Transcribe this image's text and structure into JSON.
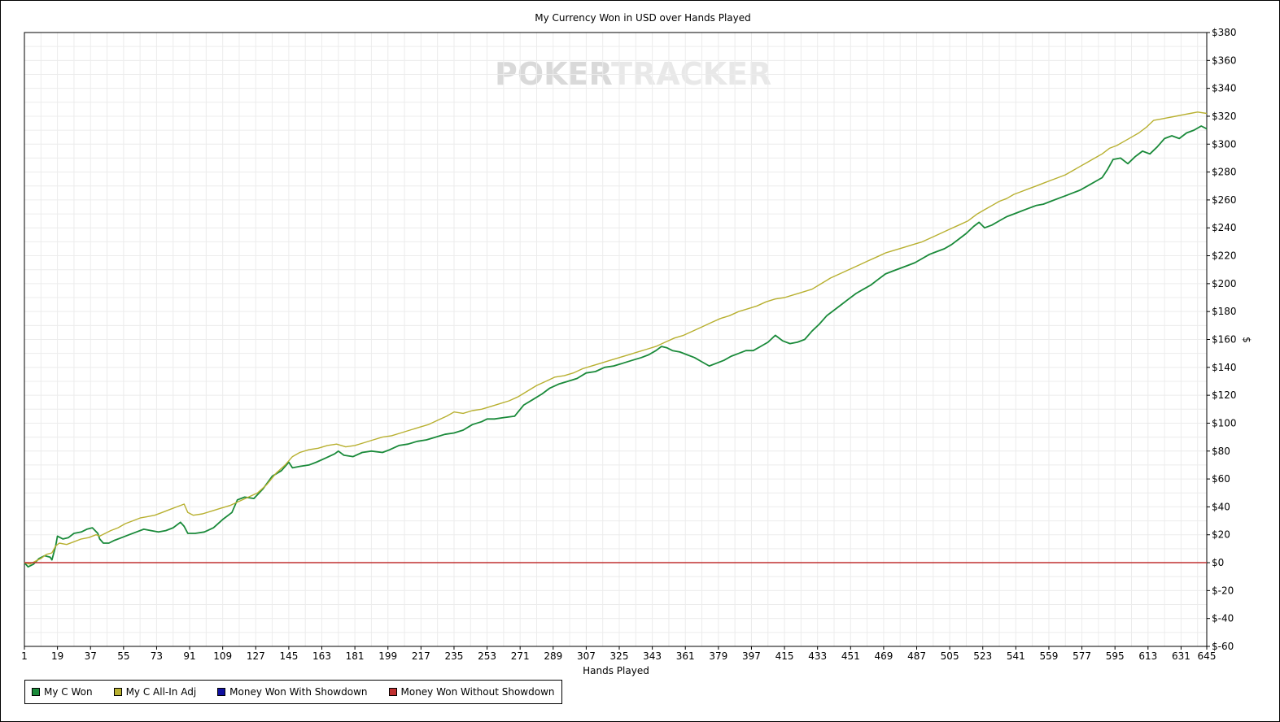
{
  "chart_data": {
    "type": "line",
    "title": "My Currency Won in USD over Hands Played",
    "xlabel": "Hands Played",
    "ylabel": "$",
    "watermark": "POKERTRACKER",
    "x_range": [
      1,
      645
    ],
    "y_range": [
      -60,
      380
    ],
    "x_ticks": [
      "1",
      "19",
      "37",
      "55",
      "73",
      "91",
      "109",
      "127",
      "145",
      "163",
      "181",
      "199",
      "217",
      "235",
      "253",
      "271",
      "289",
      "307",
      "325",
      "343",
      "361",
      "379",
      "397",
      "415",
      "433",
      "451",
      "469",
      "487",
      "505",
      "523",
      "541",
      "559",
      "577",
      "595",
      "613",
      "631",
      "645"
    ],
    "y_ticks": [
      "$380",
      "$360",
      "$340",
      "$320",
      "$300",
      "$280",
      "$260",
      "$240",
      "$220",
      "$200",
      "$180",
      "$160",
      "$140",
      "$120",
      "$100",
      "$80",
      "$60",
      "$40",
      "$20",
      "$0",
      "$-20",
      "$-40",
      "$-60"
    ],
    "grid": true,
    "legend_position": "bottom-left",
    "series": [
      {
        "name": "My C Won",
        "color": "#1a8a3a",
        "points": [
          [
            1,
            0
          ],
          [
            3,
            -3
          ],
          [
            6,
            -1
          ],
          [
            9,
            3
          ],
          [
            12,
            5
          ],
          [
            15,
            4
          ],
          [
            16,
            2
          ],
          [
            18,
            12
          ],
          [
            19,
            19
          ],
          [
            22,
            17
          ],
          [
            25,
            18
          ],
          [
            28,
            21
          ],
          [
            32,
            22
          ],
          [
            35,
            24
          ],
          [
            38,
            25
          ],
          [
            41,
            21
          ],
          [
            42,
            17
          ],
          [
            44,
            14
          ],
          [
            47,
            14
          ],
          [
            50,
            16
          ],
          [
            54,
            18
          ],
          [
            58,
            20
          ],
          [
            62,
            22
          ],
          [
            66,
            24
          ],
          [
            70,
            23
          ],
          [
            74,
            22
          ],
          [
            78,
            23
          ],
          [
            82,
            25
          ],
          [
            86,
            29
          ],
          [
            88,
            26
          ],
          [
            90,
            21
          ],
          [
            94,
            21
          ],
          [
            99,
            22
          ],
          [
            104,
            25
          ],
          [
            109,
            31
          ],
          [
            114,
            36
          ],
          [
            117,
            45
          ],
          [
            121,
            47
          ],
          [
            126,
            46
          ],
          [
            131,
            53
          ],
          [
            136,
            62
          ],
          [
            141,
            66
          ],
          [
            145,
            72
          ],
          [
            147,
            68
          ],
          [
            151,
            69
          ],
          [
            156,
            70
          ],
          [
            160,
            72
          ],
          [
            165,
            75
          ],
          [
            170,
            78
          ],
          [
            172,
            80
          ],
          [
            175,
            77
          ],
          [
            180,
            76
          ],
          [
            185,
            79
          ],
          [
            190,
            80
          ],
          [
            196,
            79
          ],
          [
            200,
            81
          ],
          [
            205,
            84
          ],
          [
            210,
            85
          ],
          [
            215,
            87
          ],
          [
            220,
            88
          ],
          [
            225,
            90
          ],
          [
            230,
            92
          ],
          [
            235,
            93
          ],
          [
            240,
            95
          ],
          [
            245,
            99
          ],
          [
            250,
            101
          ],
          [
            253,
            103
          ],
          [
            257,
            103
          ],
          [
            262,
            104
          ],
          [
            268,
            105
          ],
          [
            273,
            113
          ],
          [
            278,
            117
          ],
          [
            283,
            121
          ],
          [
            287,
            125
          ],
          [
            292,
            128
          ],
          [
            297,
            130
          ],
          [
            302,
            132
          ],
          [
            307,
            136
          ],
          [
            312,
            137
          ],
          [
            317,
            140
          ],
          [
            322,
            141
          ],
          [
            327,
            143
          ],
          [
            332,
            145
          ],
          [
            337,
            147
          ],
          [
            341,
            149
          ],
          [
            345,
            152
          ],
          [
            348,
            155
          ],
          [
            351,
            154
          ],
          [
            354,
            152
          ],
          [
            358,
            151
          ],
          [
            362,
            149
          ],
          [
            366,
            147
          ],
          [
            370,
            144
          ],
          [
            374,
            141
          ],
          [
            378,
            143
          ],
          [
            382,
            145
          ],
          [
            386,
            148
          ],
          [
            390,
            150
          ],
          [
            394,
            152
          ],
          [
            398,
            152
          ],
          [
            402,
            155
          ],
          [
            406,
            158
          ],
          [
            410,
            163
          ],
          [
            414,
            159
          ],
          [
            418,
            157
          ],
          [
            422,
            158
          ],
          [
            426,
            160
          ],
          [
            430,
            166
          ],
          [
            434,
            171
          ],
          [
            438,
            177
          ],
          [
            442,
            181
          ],
          [
            446,
            185
          ],
          [
            450,
            189
          ],
          [
            454,
            193
          ],
          [
            458,
            196
          ],
          [
            462,
            199
          ],
          [
            466,
            203
          ],
          [
            470,
            207
          ],
          [
            474,
            209
          ],
          [
            478,
            211
          ],
          [
            482,
            213
          ],
          [
            486,
            215
          ],
          [
            490,
            218
          ],
          [
            494,
            221
          ],
          [
            498,
            223
          ],
          [
            502,
            225
          ],
          [
            506,
            228
          ],
          [
            510,
            232
          ],
          [
            514,
            236
          ],
          [
            518,
            241
          ],
          [
            521,
            244
          ],
          [
            524,
            240
          ],
          [
            528,
            242
          ],
          [
            532,
            245
          ],
          [
            536,
            248
          ],
          [
            540,
            250
          ],
          [
            544,
            252
          ],
          [
            548,
            254
          ],
          [
            552,
            256
          ],
          [
            556,
            257
          ],
          [
            560,
            259
          ],
          [
            564,
            261
          ],
          [
            568,
            263
          ],
          [
            572,
            265
          ],
          [
            576,
            267
          ],
          [
            580,
            270
          ],
          [
            584,
            273
          ],
          [
            588,
            276
          ],
          [
            591,
            282
          ],
          [
            594,
            289
          ],
          [
            598,
            290
          ],
          [
            602,
            286
          ],
          [
            606,
            291
          ],
          [
            610,
            295
          ],
          [
            614,
            293
          ],
          [
            618,
            298
          ],
          [
            622,
            304
          ],
          [
            626,
            306
          ],
          [
            630,
            304
          ],
          [
            634,
            308
          ],
          [
            638,
            310
          ],
          [
            642,
            313
          ],
          [
            645,
            311
          ]
        ]
      },
      {
        "name": "My C All-In Adj",
        "color": "#b8b030",
        "points": [
          [
            1,
            0
          ],
          [
            4,
            -1
          ],
          [
            7,
            1
          ],
          [
            10,
            3
          ],
          [
            13,
            6
          ],
          [
            16,
            7
          ],
          [
            18,
            12
          ],
          [
            20,
            14
          ],
          [
            24,
            13
          ],
          [
            28,
            15
          ],
          [
            32,
            17
          ],
          [
            36,
            18
          ],
          [
            40,
            20
          ],
          [
            42,
            19
          ],
          [
            45,
            21
          ],
          [
            48,
            23
          ],
          [
            52,
            25
          ],
          [
            56,
            28
          ],
          [
            60,
            30
          ],
          [
            64,
            32
          ],
          [
            68,
            33
          ],
          [
            72,
            34
          ],
          [
            76,
            36
          ],
          [
            80,
            38
          ],
          [
            84,
            40
          ],
          [
            88,
            42
          ],
          [
            90,
            36
          ],
          [
            93,
            34
          ],
          [
            98,
            35
          ],
          [
            103,
            37
          ],
          [
            108,
            39
          ],
          [
            113,
            41
          ],
          [
            118,
            44
          ],
          [
            123,
            47
          ],
          [
            128,
            50
          ],
          [
            133,
            56
          ],
          [
            138,
            64
          ],
          [
            143,
            70
          ],
          [
            147,
            76
          ],
          [
            151,
            79
          ],
          [
            156,
            81
          ],
          [
            161,
            82
          ],
          [
            166,
            84
          ],
          [
            171,
            85
          ],
          [
            176,
            83
          ],
          [
            181,
            84
          ],
          [
            186,
            86
          ],
          [
            191,
            88
          ],
          [
            196,
            90
          ],
          [
            201,
            91
          ],
          [
            206,
            93
          ],
          [
            211,
            95
          ],
          [
            216,
            97
          ],
          [
            221,
            99
          ],
          [
            226,
            102
          ],
          [
            231,
            105
          ],
          [
            235,
            108
          ],
          [
            240,
            107
          ],
          [
            245,
            109
          ],
          [
            250,
            110
          ],
          [
            255,
            112
          ],
          [
            260,
            114
          ],
          [
            265,
            116
          ],
          [
            270,
            119
          ],
          [
            275,
            123
          ],
          [
            280,
            127
          ],
          [
            285,
            130
          ],
          [
            290,
            133
          ],
          [
            295,
            134
          ],
          [
            300,
            136
          ],
          [
            305,
            139
          ],
          [
            310,
            141
          ],
          [
            315,
            143
          ],
          [
            320,
            145
          ],
          [
            325,
            147
          ],
          [
            330,
            149
          ],
          [
            335,
            151
          ],
          [
            340,
            153
          ],
          [
            345,
            155
          ],
          [
            350,
            158
          ],
          [
            355,
            161
          ],
          [
            360,
            163
          ],
          [
            365,
            166
          ],
          [
            370,
            169
          ],
          [
            375,
            172
          ],
          [
            380,
            175
          ],
          [
            385,
            177
          ],
          [
            390,
            180
          ],
          [
            395,
            182
          ],
          [
            400,
            184
          ],
          [
            405,
            187
          ],
          [
            410,
            189
          ],
          [
            415,
            190
          ],
          [
            420,
            192
          ],
          [
            425,
            194
          ],
          [
            430,
            196
          ],
          [
            435,
            200
          ],
          [
            440,
            204
          ],
          [
            445,
            207
          ],
          [
            450,
            210
          ],
          [
            455,
            213
          ],
          [
            460,
            216
          ],
          [
            465,
            219
          ],
          [
            470,
            222
          ],
          [
            475,
            224
          ],
          [
            480,
            226
          ],
          [
            485,
            228
          ],
          [
            490,
            230
          ],
          [
            495,
            233
          ],
          [
            500,
            236
          ],
          [
            505,
            239
          ],
          [
            510,
            242
          ],
          [
            515,
            245
          ],
          [
            520,
            250
          ],
          [
            524,
            253
          ],
          [
            528,
            256
          ],
          [
            532,
            259
          ],
          [
            536,
            261
          ],
          [
            540,
            264
          ],
          [
            544,
            266
          ],
          [
            548,
            268
          ],
          [
            552,
            270
          ],
          [
            556,
            272
          ],
          [
            560,
            274
          ],
          [
            564,
            276
          ],
          [
            568,
            278
          ],
          [
            572,
            281
          ],
          [
            576,
            284
          ],
          [
            580,
            287
          ],
          [
            584,
            290
          ],
          [
            588,
            293
          ],
          [
            592,
            297
          ],
          [
            596,
            299
          ],
          [
            600,
            302
          ],
          [
            604,
            305
          ],
          [
            608,
            308
          ],
          [
            612,
            312
          ],
          [
            616,
            317
          ],
          [
            620,
            318
          ],
          [
            624,
            319
          ],
          [
            628,
            320
          ],
          [
            632,
            321
          ],
          [
            636,
            322
          ],
          [
            640,
            323
          ],
          [
            645,
            322
          ]
        ]
      },
      {
        "name": "Money Won With Showdown",
        "color": "#1010a0",
        "points": []
      },
      {
        "name": "Money Won Without Showdown",
        "color": "#c03030",
        "points": [
          [
            1,
            0
          ],
          [
            645,
            0
          ]
        ]
      }
    ]
  }
}
